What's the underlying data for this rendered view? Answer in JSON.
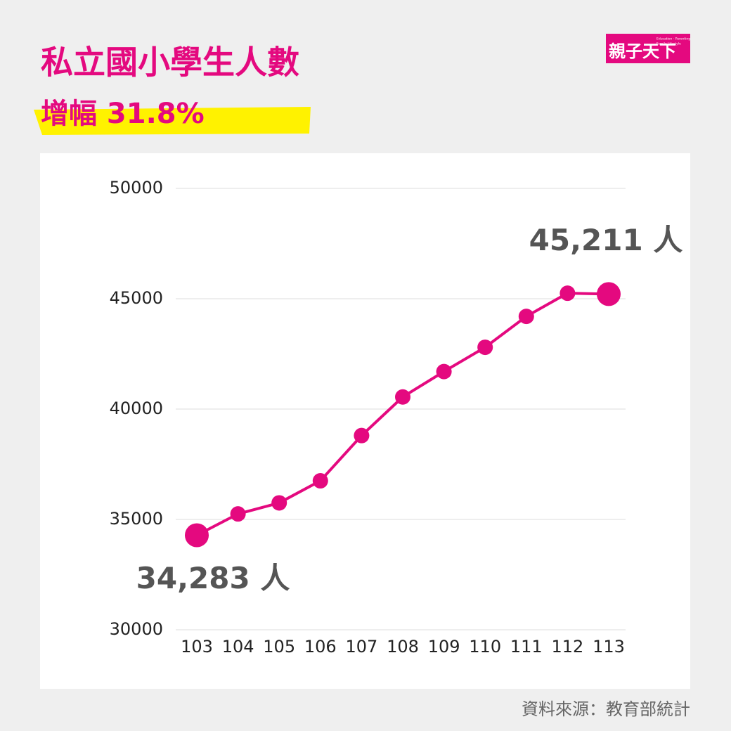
{
  "chart_data": {
    "type": "line",
    "title": "私立國小學生人數",
    "subtitle": "增幅 31.8%",
    "source": "資料來源：教育部統計",
    "logo": {
      "main": "親子天下",
      "tagline_1": "Education · Parenting",
      "tagline_2": "Family Lifestyle"
    },
    "categories": [
      "103",
      "104",
      "105",
      "106",
      "107",
      "108",
      "109",
      "110",
      "111",
      "112",
      "113"
    ],
    "series": [
      {
        "name": "私立國小學生人數",
        "color": "#e4097f",
        "values": [
          34283,
          35250,
          35750,
          36750,
          38800,
          40550,
          41700,
          42800,
          44200,
          45250,
          45211
        ],
        "value_labels": [
          "34,283 人",
          null,
          null,
          null,
          null,
          null,
          null,
          null,
          null,
          null,
          "45,211 人"
        ]
      }
    ],
    "ylim": [
      30000,
      50000
    ],
    "yticks": [
      30000,
      35000,
      40000,
      45000,
      50000
    ],
    "grid": true
  }
}
